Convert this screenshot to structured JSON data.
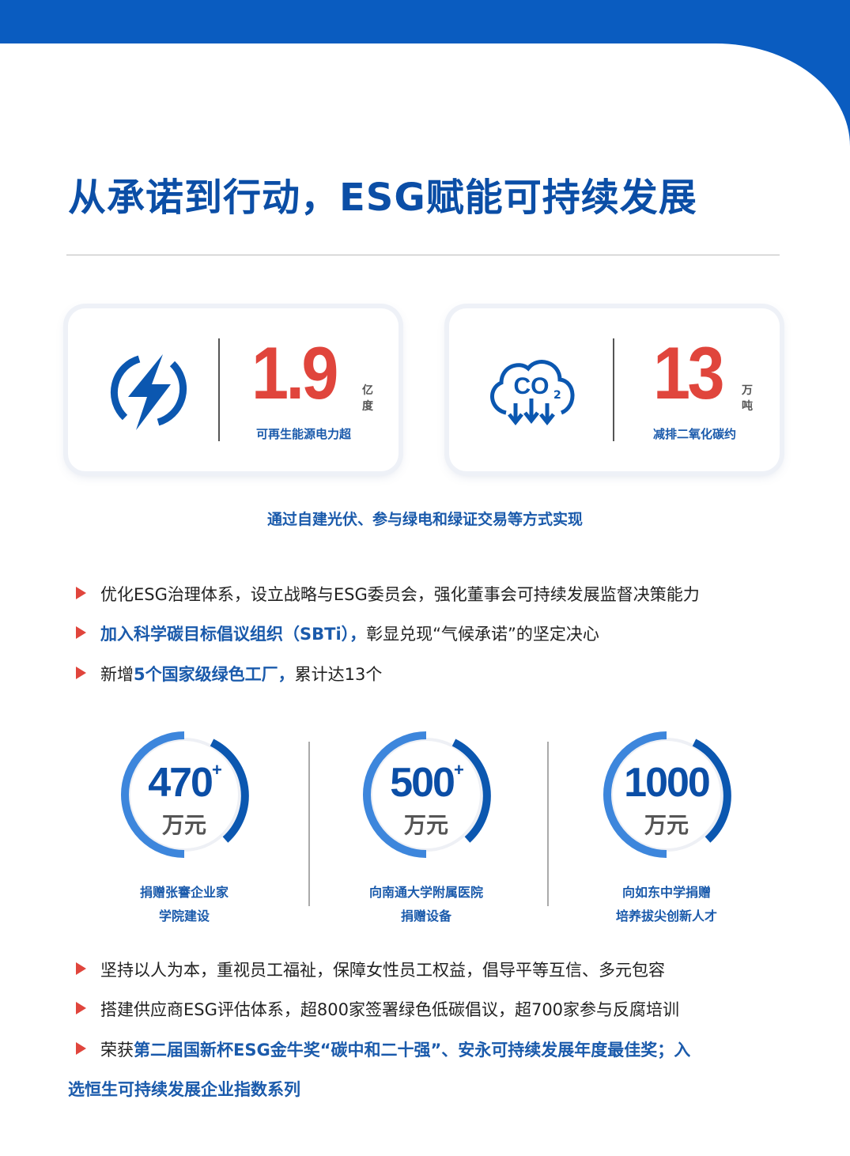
{
  "title": "从承诺到行动，ESG赋能可持续发展",
  "cards": [
    {
      "icon": "lightning-icon",
      "value": "1.9",
      "unit": "亿度",
      "caption": "可再生能源电力超"
    },
    {
      "icon": "co2-cloud-icon",
      "value": "13",
      "unit": "万吨",
      "caption": "减排二氧化碳约",
      "icon_text": "CO₂"
    }
  ],
  "subtitle": "通过自建光伏、参与绿电和绿证交易等方式实现",
  "bullets_top": [
    [
      {
        "t": "优化ESG治理体系，设立战略与ESG委员会，强化董事会可持续发展监督决策能力",
        "h": false
      }
    ],
    [
      {
        "t": "加入科学碳目标倡议组织（SBTi），",
        "h": true
      },
      {
        "t": "彰显兑现“气候承诺”的坚定决心",
        "h": false
      }
    ],
    [
      {
        "t": "新增",
        "h": false
      },
      {
        "t": "5个国家级绿色工厂，",
        "h": true
      },
      {
        "t": "累计达13个",
        "h": false
      }
    ]
  ],
  "donations": [
    {
      "value": "470",
      "plus": "+",
      "unit": "万元",
      "line1": "捐赠张謇企业家",
      "line2": "学院建设"
    },
    {
      "value": "500",
      "plus": "+",
      "unit": "万元",
      "line1": "向南通大学附属医院",
      "line2": "捐赠设备"
    },
    {
      "value": "1000",
      "plus": "",
      "unit": "万元",
      "line1": "向如东中学捐赠",
      "line2": "培养拔尖创新人才"
    }
  ],
  "bullets_bottom": [
    [
      {
        "t": "坚持以人为本，重视员工福祉，保障女性员工权益，倡导平等互信、多元包容",
        "h": false
      }
    ],
    [
      {
        "t": "搭建供应商ESG评估体系，超800家签署绿色低碳倡议，超700家参与反腐培训",
        "h": false
      }
    ],
    [
      {
        "t": "荣获",
        "h": false
      },
      {
        "t": "第二届国新杯ESG金牛奖“碳中和二十强”、安永可持续发展年度最佳奖；入",
        "h": true
      }
    ]
  ],
  "bullet_wrap": "选恒生可持续发展企业指数系列",
  "colors": {
    "brand_blue": "#0b4ea6",
    "accent_red": "#e0453c"
  }
}
